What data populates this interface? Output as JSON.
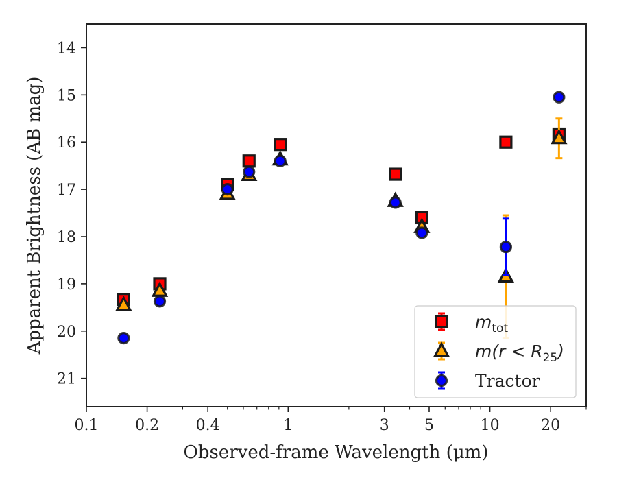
{
  "chart_data": {
    "type": "scatter",
    "xlabel": "Observed-frame Wavelength (μm)",
    "ylabel": "Apparent Brightness (AB mag)",
    "xscale": "log",
    "xlim": [
      0.1,
      30
    ],
    "ylim": [
      21.6,
      13.5
    ],
    "y_inverted": true,
    "x_ticks": [
      {
        "value": 0.1,
        "label": "0.1"
      },
      {
        "value": 0.2,
        "label": "0.2"
      },
      {
        "value": 0.4,
        "label": "0.4"
      },
      {
        "value": 1,
        "label": "1"
      },
      {
        "value": 3,
        "label": "3"
      },
      {
        "value": 5,
        "label": "5"
      },
      {
        "value": 10,
        "label": "10"
      },
      {
        "value": 20,
        "label": "20"
      }
    ],
    "x_minor_ticks": [
      0.3,
      0.5,
      0.6,
      0.7,
      0.8,
      0.9,
      2,
      4,
      6,
      7,
      8,
      9,
      30
    ],
    "y_ticks": [
      14,
      15,
      16,
      17,
      18,
      19,
      20,
      21
    ],
    "grid": false,
    "legend_position": "lower-right",
    "series": [
      {
        "legend": {
          "base": "m",
          "sub": "tot",
          "rest": ""
        },
        "marker": "square",
        "color": "#ff0000",
        "ecolor": "#ff0000",
        "points": [
          {
            "x": 0.153,
            "y": 19.33,
            "err": 0.05
          },
          {
            "x": 0.231,
            "y": 19.0,
            "err": 0.05
          },
          {
            "x": 0.5,
            "y": 16.9,
            "err": 0.05
          },
          {
            "x": 0.64,
            "y": 16.4,
            "err": 0.05
          },
          {
            "x": 0.913,
            "y": 16.05,
            "err": 0.05
          },
          {
            "x": 3.4,
            "y": 16.68,
            "err": 0.05
          },
          {
            "x": 4.6,
            "y": 17.6,
            "err": 0.05
          },
          {
            "x": 12.0,
            "y": 16.0,
            "err": 0.05
          },
          {
            "x": 22.0,
            "y": 15.83,
            "err": 0.05
          }
        ]
      },
      {
        "legend": {
          "base": "m",
          "sub": "25",
          "rest": "(r < R"
        },
        "marker": "triangle",
        "color": "#ffa500",
        "ecolor": "#ffa500",
        "points": [
          {
            "x": 0.153,
            "y": 19.45,
            "err": 0.05
          },
          {
            "x": 0.231,
            "y": 19.15,
            "err": 0.05
          },
          {
            "x": 0.5,
            "y": 17.1,
            "err": 0.05
          },
          {
            "x": 0.64,
            "y": 16.7,
            "err": 0.05
          },
          {
            "x": 0.913,
            "y": 16.37,
            "err": 0.05
          },
          {
            "x": 3.4,
            "y": 17.25,
            "err": 0.05
          },
          {
            "x": 4.6,
            "y": 17.8,
            "err": 0.05
          },
          {
            "x": 12.0,
            "y": 18.85,
            "err": 1.3
          },
          {
            "x": 22.0,
            "y": 15.92,
            "err": 0.42
          }
        ]
      },
      {
        "legend": {
          "base": "Tractor",
          "sub": "",
          "rest": ""
        },
        "marker": "circle",
        "color": "#0000ff",
        "ecolor": "#0000ff",
        "points": [
          {
            "x": 0.153,
            "y": 20.15,
            "err": 0.06
          },
          {
            "x": 0.231,
            "y": 19.37,
            "err": 0.06
          },
          {
            "x": 0.5,
            "y": 17.0,
            "err": 0.06
          },
          {
            "x": 0.64,
            "y": 16.63,
            "err": 0.06
          },
          {
            "x": 0.913,
            "y": 16.4,
            "err": 0.06
          },
          {
            "x": 3.4,
            "y": 17.28,
            "err": 0.06
          },
          {
            "x": 4.6,
            "y": 17.92,
            "err": 0.06
          },
          {
            "x": 12.0,
            "y": 18.22,
            "err": 0.6
          },
          {
            "x": 22.0,
            "y": 15.05,
            "err": 0.06
          }
        ]
      }
    ]
  }
}
